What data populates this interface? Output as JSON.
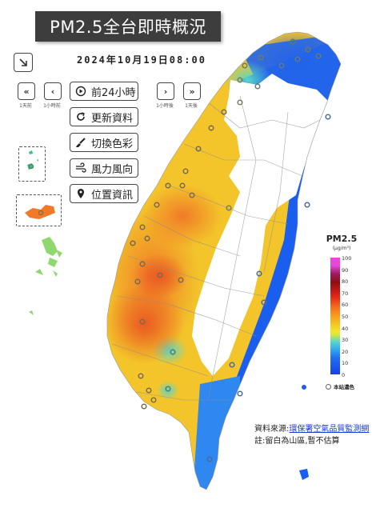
{
  "title": "PM2.5全台即時概況",
  "timestamp": "2024年10月19日08:00",
  "nav": {
    "back_week": "«",
    "back_hour": "‹",
    "forward_hour": "›",
    "forward_week": "»",
    "back_week_label": "1天前",
    "back_hour_label": "1小時前",
    "forward_hour_label": "1小時後",
    "forward_week_label": "1天後"
  },
  "menu": {
    "play_label": "前24小時",
    "refresh_label": "更新資料",
    "color_label": "切換色彩",
    "wind_label": "風力風向",
    "location_label": "位置資訊"
  },
  "legend": {
    "title": "PM2.5",
    "unit": "(μg/m³)",
    "ticks": [
      "100",
      "90",
      "80",
      "70",
      "60",
      "50",
      "40",
      "30",
      "20",
      "10",
      "0"
    ],
    "station_label": "本站濃色"
  },
  "footer": {
    "source_prefix": "資料來源:",
    "source_link": "環保署空氣品質監測網",
    "note": "註:留白為山區,暫不估算"
  },
  "icons": {
    "corner": "arrow-diagonal-icon",
    "play": "play-circle-icon",
    "refresh": "refresh-icon",
    "color": "brush-icon",
    "wind": "wind-icon",
    "location": "location-pin-icon"
  },
  "colors": {
    "title_bg": "#3d3d3d",
    "blue": "#1a5ef0",
    "orange": "#f08a2a",
    "yellow": "#f5d22a",
    "link": "#1a3bd6"
  }
}
